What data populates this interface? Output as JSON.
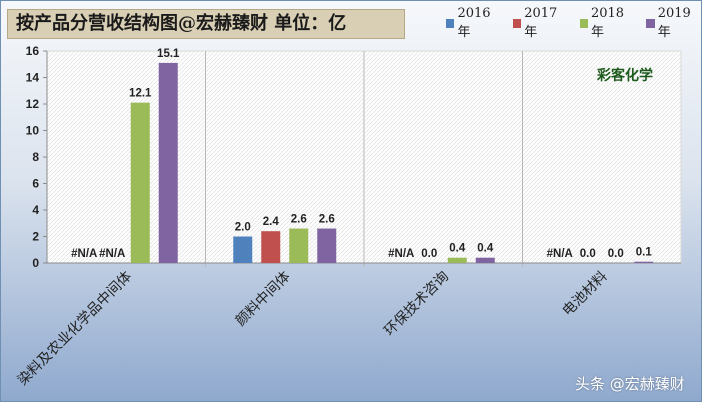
{
  "chart_data": {
    "type": "bar",
    "title": "按产品分营收结构图@宏赫臻财  单位：亿",
    "categories": [
      "染料及农业化学品中间体",
      "颜料中间体",
      "环保技术咨询",
      "电池材料"
    ],
    "series": [
      {
        "name": "2016年",
        "color": "#4f81bd",
        "values": [
          null,
          2.0,
          null,
          null
        ],
        "labels": [
          "#N/A",
          "2.0",
          "#N/A",
          "#N/A"
        ]
      },
      {
        "name": "2017年",
        "color": "#c0504d",
        "values": [
          null,
          2.4,
          0.0,
          0.0
        ],
        "labels": [
          "#N/A",
          "2.4",
          "0.0",
          "0.0"
        ]
      },
      {
        "name": "2018年",
        "color": "#9bbb59",
        "values": [
          12.1,
          2.6,
          0.4,
          0.0
        ],
        "labels": [
          "12.1",
          "2.6",
          "0.4",
          "0.0"
        ]
      },
      {
        "name": "2019年",
        "color": "#8064a2",
        "values": [
          15.1,
          2.6,
          0.4,
          0.1
        ],
        "labels": [
          "15.1",
          "2.6",
          "0.4",
          "0.1"
        ]
      }
    ],
    "yticks": [
      "0",
      "2",
      "4",
      "6",
      "8",
      "10",
      "12",
      "14",
      "16"
    ],
    "ylim": [
      0,
      16
    ],
    "legend_position": "top-right",
    "grid": "vertical category separators"
  },
  "watermark": {
    "brand": "彩客化学",
    "source": "头条 @宏赫臻财"
  }
}
